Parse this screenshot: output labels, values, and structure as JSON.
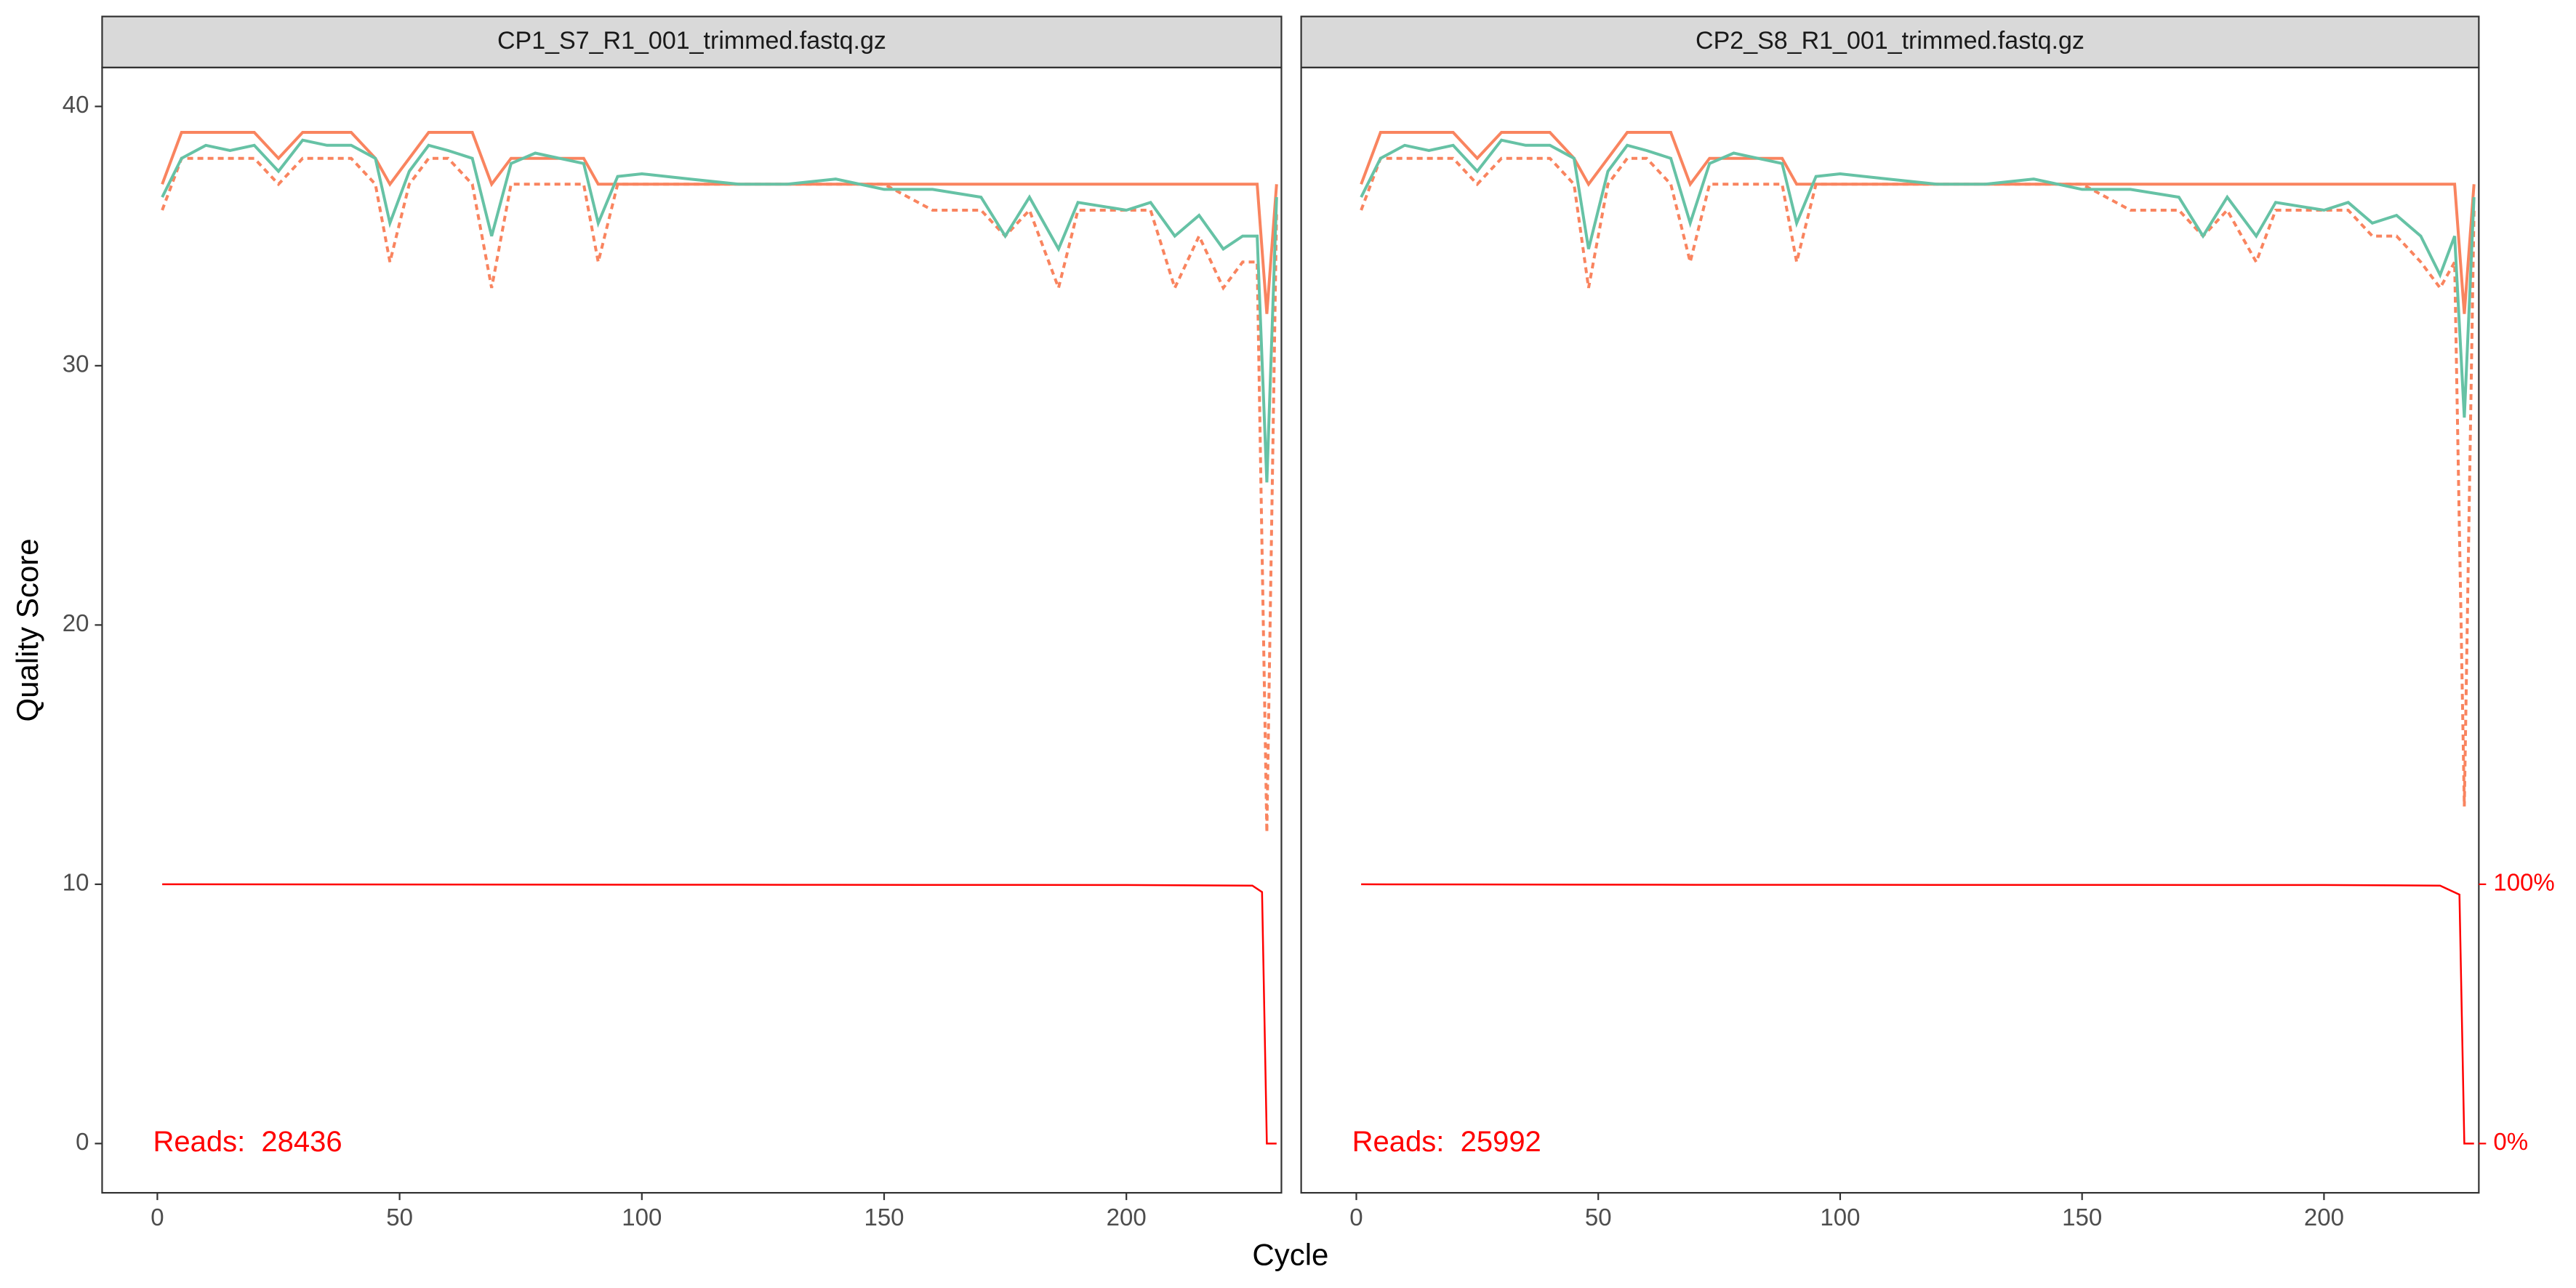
{
  "chart_data": [
    {
      "type": "line",
      "title": "CP1_S7_R1_001_trimmed.fastq.gz",
      "xlabel": "Cycle",
      "ylabel": "Quality Score",
      "annotation": "Reads:  28436",
      "xlim": [
        -11.4,
        232
      ],
      "xticks": [
        0,
        50,
        100,
        150,
        200
      ],
      "ylim": [
        -1.9,
        41.5
      ],
      "yticks": [
        0,
        10,
        20,
        30,
        40
      ],
      "y2lim": [
        -19,
        415
      ],
      "series": [
        {
          "color": "#f9845f",
          "dash": true,
          "x": [
            1,
            5,
            10,
            15,
            20,
            25,
            30,
            35,
            40,
            45,
            48,
            52,
            56,
            60,
            65,
            69,
            73,
            78,
            83,
            88,
            91,
            95,
            100,
            110,
            120,
            130,
            140,
            150,
            160,
            170,
            175,
            180,
            186,
            190,
            200,
            205,
            210,
            215,
            220,
            224,
            227,
            229,
            231
          ],
          "values": [
            36,
            38,
            38,
            38,
            38,
            37,
            38,
            38,
            38,
            37,
            34,
            37,
            38,
            38,
            37,
            33,
            37,
            37,
            37,
            37,
            34,
            37,
            37,
            37,
            37,
            37,
            37,
            37,
            36,
            36,
            35,
            36,
            33,
            36,
            36,
            36,
            33,
            35,
            33,
            34,
            34,
            12,
            36
          ]
        },
        {
          "color": "#f9845f",
          "dash": false,
          "x": [
            1,
            5,
            10,
            15,
            20,
            25,
            30,
            35,
            40,
            45,
            48,
            52,
            56,
            60,
            65,
            69,
            73,
            78,
            83,
            88,
            91,
            95,
            100,
            110,
            120,
            130,
            140,
            150,
            160,
            170,
            175,
            180,
            186,
            190,
            200,
            205,
            210,
            215,
            220,
            224,
            227,
            229,
            231
          ],
          "values": [
            37,
            39,
            39,
            39,
            39,
            38,
            39,
            39,
            39,
            38,
            37,
            38,
            39,
            39,
            39,
            37,
            38,
            38,
            38,
            38,
            37,
            37,
            37,
            37,
            37,
            37,
            37,
            37,
            37,
            37,
            37,
            37,
            37,
            37,
            37,
            37,
            37,
            37,
            37,
            37,
            37,
            32,
            37
          ]
        },
        {
          "color": "#66c2a5",
          "dash": false,
          "x": [
            1,
            5,
            10,
            15,
            20,
            25,
            30,
            35,
            40,
            45,
            48,
            52,
            56,
            60,
            65,
            69,
            73,
            78,
            83,
            88,
            91,
            95,
            100,
            110,
            120,
            130,
            140,
            150,
            160,
            170,
            175,
            180,
            186,
            190,
            200,
            205,
            210,
            215,
            220,
            224,
            227,
            229,
            231
          ],
          "values": [
            36.5,
            38,
            38.5,
            38.3,
            38.5,
            37.5,
            38.7,
            38.5,
            38.5,
            38,
            35.5,
            37.5,
            38.5,
            38.3,
            38,
            35,
            37.8,
            38.2,
            38,
            37.8,
            35.5,
            37.3,
            37.4,
            37.2,
            37,
            37,
            37.2,
            36.8,
            36.8,
            36.5,
            35,
            36.5,
            34.5,
            36.3,
            36,
            36.3,
            35,
            35.8,
            34.5,
            35,
            35,
            25.5,
            36.5
          ]
        },
        {
          "color": "#ff0000",
          "dash": false,
          "axis": "y2",
          "x": [
            1,
            130,
            200,
            226,
            228,
            229,
            231
          ],
          "values": [
            100,
            99.8,
            99.7,
            99.5,
            97,
            0,
            0
          ]
        }
      ]
    },
    {
      "type": "line",
      "title": "CP2_S8_R1_001_trimmed.fastq.gz",
      "annotation": "Reads:  25992",
      "xlim": [
        -11.4,
        232
      ],
      "xticks": [
        0,
        50,
        100,
        150,
        200
      ],
      "ylim": [
        -1.9,
        41.5
      ],
      "y2lim": [
        -19,
        415
      ],
      "y2ticks": [
        {
          "value": 0,
          "label": "0%"
        },
        {
          "value": 100,
          "label": "100%"
        }
      ],
      "series": [
        {
          "color": "#f9845f",
          "dash": true,
          "x": [
            1,
            5,
            10,
            15,
            20,
            25,
            30,
            35,
            40,
            45,
            48,
            52,
            56,
            60,
            65,
            69,
            73,
            78,
            83,
            88,
            91,
            95,
            100,
            110,
            120,
            130,
            140,
            150,
            160,
            170,
            175,
            180,
            186,
            190,
            200,
            205,
            210,
            215,
            220,
            224,
            227,
            229,
            231
          ],
          "values": [
            36,
            38,
            38,
            38,
            38,
            37,
            38,
            38,
            38,
            37,
            33,
            37,
            38,
            38,
            37,
            34,
            37,
            37,
            37,
            37,
            34,
            37,
            37,
            37,
            37,
            37,
            37,
            37,
            36,
            36,
            35,
            36,
            34,
            36,
            36,
            36,
            35,
            35,
            34,
            33,
            34,
            13,
            36
          ]
        },
        {
          "color": "#f9845f",
          "dash": false,
          "x": [
            1,
            5,
            10,
            15,
            20,
            25,
            30,
            35,
            40,
            45,
            48,
            52,
            56,
            60,
            65,
            69,
            73,
            78,
            83,
            88,
            91,
            95,
            100,
            110,
            120,
            130,
            140,
            150,
            160,
            170,
            175,
            180,
            186,
            190,
            200,
            205,
            210,
            215,
            220,
            224,
            227,
            229,
            231
          ],
          "values": [
            37,
            39,
            39,
            39,
            39,
            38,
            39,
            39,
            39,
            38,
            37,
            38,
            39,
            39,
            39,
            37,
            38,
            38,
            38,
            38,
            37,
            37,
            37,
            37,
            37,
            37,
            37,
            37,
            37,
            37,
            37,
            37,
            37,
            37,
            37,
            37,
            37,
            37,
            37,
            37,
            37,
            32,
            37
          ]
        },
        {
          "color": "#66c2a5",
          "dash": false,
          "x": [
            1,
            5,
            10,
            15,
            20,
            25,
            30,
            35,
            40,
            45,
            48,
            52,
            56,
            60,
            65,
            69,
            73,
            78,
            83,
            88,
            91,
            95,
            100,
            110,
            120,
            130,
            140,
            150,
            160,
            170,
            175,
            180,
            186,
            190,
            200,
            205,
            210,
            215,
            220,
            224,
            227,
            229,
            231
          ],
          "values": [
            36.5,
            38,
            38.5,
            38.3,
            38.5,
            37.5,
            38.7,
            38.5,
            38.5,
            38,
            34.5,
            37.5,
            38.5,
            38.3,
            38,
            35.5,
            37.8,
            38.2,
            38,
            37.8,
            35.5,
            37.3,
            37.4,
            37.2,
            37,
            37,
            37.2,
            36.8,
            36.8,
            36.5,
            35,
            36.5,
            35,
            36.3,
            36,
            36.3,
            35.5,
            35.8,
            35,
            33.5,
            35,
            28,
            36.5
          ]
        },
        {
          "color": "#ff0000",
          "dash": false,
          "axis": "y2",
          "x": [
            1,
            70,
            200,
            224,
            228,
            229,
            231
          ],
          "values": [
            100,
            99.8,
            99.7,
            99.5,
            96,
            0,
            0
          ]
        }
      ]
    }
  ]
}
